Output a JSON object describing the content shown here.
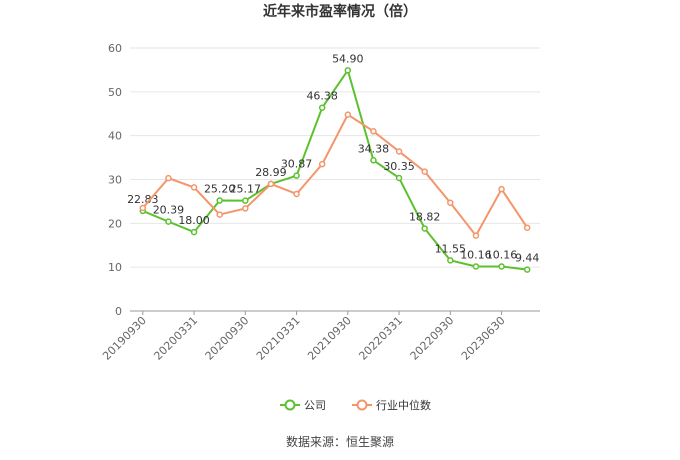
{
  "chart_data": {
    "type": "line",
    "title": "近年来市盈率情况（倍）",
    "categories": [
      "20190930",
      null,
      "20200331",
      null,
      "20200930",
      null,
      "20210331",
      null,
      "20210930",
      null,
      "20220331",
      null,
      "20220930",
      null,
      "20230630",
      null
    ],
    "series": [
      {
        "name": "公司",
        "color": "#5cc12f",
        "values": [
          22.83,
          20.39,
          18.0,
          25.2,
          25.17,
          28.99,
          30.87,
          46.38,
          54.9,
          34.38,
          30.35,
          18.82,
          11.55,
          10.16,
          10.16,
          9.44
        ],
        "value_labels": [
          "22.83",
          "20.39",
          "18.00",
          "25.20",
          "25.17",
          "28.99",
          "30.87",
          "46.38",
          "54.90",
          "34.38",
          "30.35",
          "18.82",
          "11.55",
          "10.16",
          "10.16",
          "9.44"
        ]
      },
      {
        "name": "行业中位数",
        "color": "#f4956a",
        "values": [
          23.5,
          30.3,
          28.2,
          22.0,
          23.4,
          29.0,
          26.7,
          33.5,
          44.8,
          41.0,
          36.4,
          31.8,
          24.7,
          17.2,
          27.8,
          19.0
        ]
      }
    ],
    "ylim": [
      0,
      60
    ],
    "yticks": [
      0,
      10,
      20,
      30,
      40,
      50,
      60
    ],
    "grid": true,
    "legend": "bottom",
    "source": "数据来源：恒生聚源"
  }
}
